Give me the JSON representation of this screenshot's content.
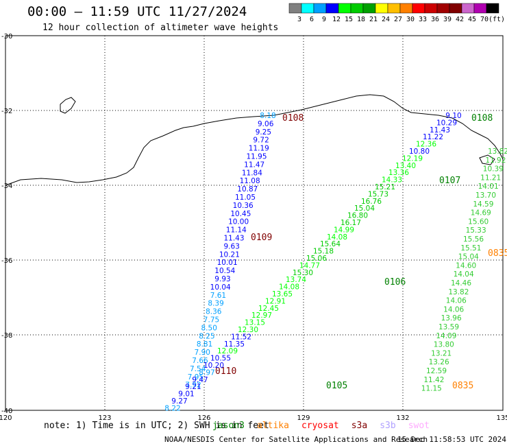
{
  "header": {
    "title": "00:00 – 11:59 UTC 11/27/2024",
    "subtitle": "12 hour collection of altimeter wave heights"
  },
  "legend": {
    "colors": [
      "#808080",
      "#00ffff",
      "#00a0ff",
      "#0000ff",
      "#00ff00",
      "#00cc00",
      "#00a000",
      "#ffff00",
      "#ffbf00",
      "#ff8000",
      "#ff0000",
      "#cc0000",
      "#a00000",
      "#800000",
      "#cc66cc",
      "#b000b0",
      "#000000"
    ],
    "labels": [
      "3",
      "6",
      "9",
      "12",
      "15",
      "18",
      "21",
      "24",
      "27",
      "30",
      "33",
      "36",
      "39",
      "42",
      "45",
      "70",
      "(ft)"
    ]
  },
  "axes": {
    "lat_labels": [
      "-30",
      "-32",
      "-34",
      "-36",
      "-38",
      "-40"
    ],
    "lon_labels": [
      "120",
      "123",
      "126",
      "129",
      "132",
      "135"
    ]
  },
  "tracks": [
    {
      "id": "0108",
      "color": "#800000",
      "heights": [
        "8.18",
        "9.06",
        "9.25",
        "9.72",
        "11.19",
        "11.95",
        "11.47",
        "11.84",
        "11.08",
        "10.87",
        "11.05",
        "10.36",
        "10.45",
        "10.00",
        "11.14",
        "11.43",
        "9.63",
        "10.21",
        "10.01",
        "10.54",
        "9.93",
        "10.04",
        "7.61",
        "8.39",
        "8.36",
        "7.75",
        "8.50",
        "8.25",
        "8.81",
        "7.90",
        "7.66",
        "7.54",
        "7.95",
        "7.92"
      ]
    },
    {
      "id": "0109",
      "color": "#800000",
      "heights": []
    },
    {
      "id": "0110",
      "color": "#800000",
      "heights": []
    },
    {
      "id": "0108b",
      "label": "0108",
      "color": "#008000",
      "heights": [
        "9.10",
        "10.29",
        "11.43",
        "11.22",
        "12.36",
        "10.80",
        "12.19",
        "13.40",
        "13.36",
        "14.33",
        "15.21",
        "15.73",
        "16.76",
        "15.04",
        "16.80",
        "16.17",
        "14.99",
        "14.08",
        "15.64",
        "15.18",
        "15.06",
        "14.77",
        "15.30",
        "13.74",
        "14.08",
        "13.65",
        "12.91",
        "12.45",
        "12.97",
        "13.15",
        "12.30",
        "11.52",
        "11.35",
        "12.09",
        "10.55",
        "10.20",
        "8.97",
        "9.47",
        "9.21",
        "9.01",
        "9.27",
        "8.22"
      ]
    },
    {
      "id": "0107",
      "color": "#008000",
      "heights": []
    },
    {
      "id": "0106",
      "color": "#008000",
      "heights": []
    },
    {
      "id": "0105",
      "color": "#008000",
      "heights": []
    },
    {
      "id": "0835",
      "color": "#ff8000",
      "heights": [
        "13.82",
        "11.92",
        "10.39",
        "11.21",
        "14.01",
        "13.70",
        "14.59",
        "14.69",
        "15.60",
        "15.33",
        "15.56",
        "15.51",
        "15.04",
        "14.60",
        "14.04",
        "14.46",
        "13.82",
        "14.06",
        "14.06",
        "13.96",
        "13.59",
        "14.09",
        "13.80",
        "13.21",
        "13.26",
        "12.59",
        "11.42",
        "11.15"
      ]
    }
  ],
  "footer": {
    "note_prefix": "note: 1) Time is in UTC; 2) SWH is in feet",
    "sats": [
      {
        "name": "jason3",
        "color": "#008000"
      },
      {
        "name": "altika",
        "color": "#ff8000"
      },
      {
        "name": "cryosat",
        "color": "#ff0000"
      },
      {
        "name": "s3a",
        "color": "#800000"
      },
      {
        "name": "s3b",
        "color": "#b0a0ff"
      },
      {
        "name": "swot",
        "color": "#ffaaff"
      }
    ],
    "credit": "NOAA/NESDIS Center for Satellite Applications and Research",
    "timestamp": "15 Dec 11:58:53 UTC 2024"
  }
}
